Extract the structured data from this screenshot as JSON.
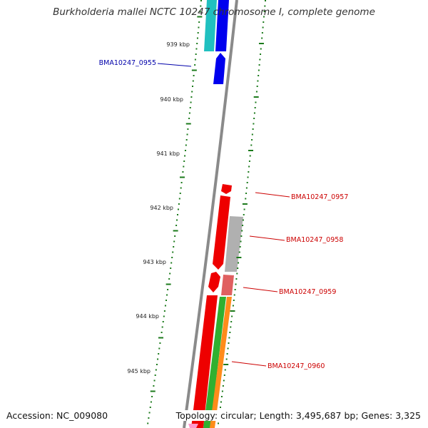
{
  "title": "Burkholderia mallei NCTC 10247 chromosome I, complete genome",
  "accession": "Accession: NC_009080",
  "topology": "Topology: circular; Length: 3,495,687 bp; Genes: 3,325",
  "colors": {
    "backbone": "#8a8a8a",
    "tick": "#1b7a1b",
    "cyan_gene": "#20c0c0",
    "blue_gene": "#0000ee",
    "red_gene": "#ee0000",
    "gray_gene": "#b0b0b0",
    "pink_gene": "#e06060",
    "green_gene": "#30b030",
    "orange_gene": "#ff8c1a",
    "blue_label": "#0000aa",
    "red_label": "#cc0000"
  },
  "scale_labels": [
    "939 kbp",
    "940 kbp",
    "941 kbp",
    "942 kbp",
    "943 kbp",
    "944 kbp",
    "945 kbp"
  ],
  "gene_labels": [
    {
      "text": "BMA10247_0955",
      "color": "blue"
    },
    {
      "text": "BMA10247_0957",
      "color": "red"
    },
    {
      "text": "BMA10247_0958",
      "color": "red"
    },
    {
      "text": "BMA10247_0959",
      "color": "red"
    },
    {
      "text": "BMA10247_0960",
      "color": "red"
    }
  ]
}
